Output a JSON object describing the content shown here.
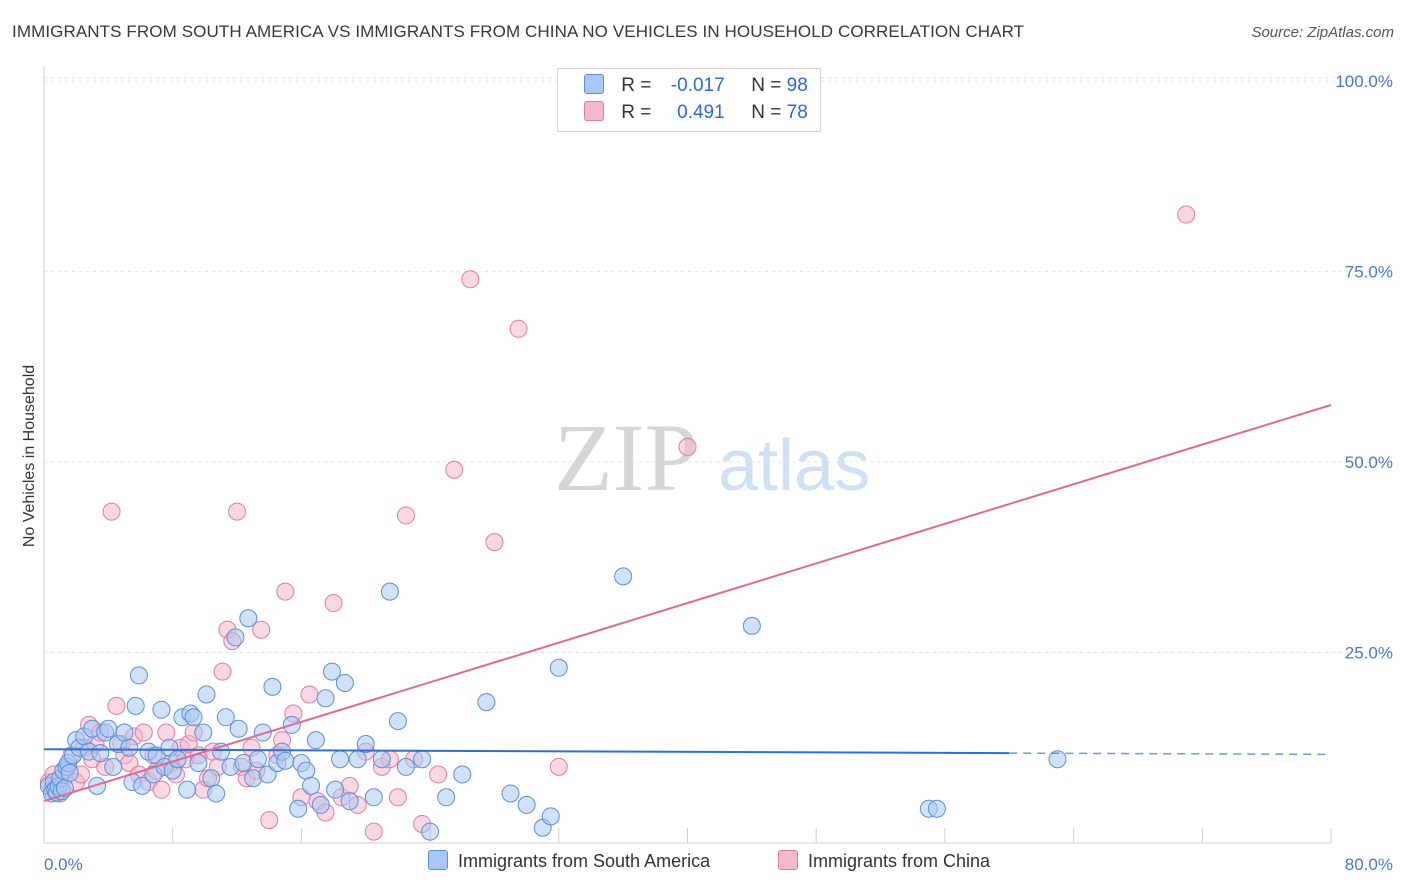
{
  "header": {
    "title": "IMMIGRANTS FROM SOUTH AMERICA VS IMMIGRANTS FROM CHINA NO VEHICLES IN HOUSEHOLD CORRELATION CHART",
    "source": "Source: ZipAtlas.com"
  },
  "watermark": {
    "zip": "ZIP",
    "atlas": "atlas"
  },
  "legend": {
    "rows": [
      {
        "r_label": "R =",
        "r_value": "-0.017",
        "n_label": "N =",
        "n_value": "98",
        "color": "#a9c8f3"
      },
      {
        "r_label": "R =",
        "r_value": "0.491",
        "n_label": "N =",
        "n_value": "78",
        "color": "#f6b8cc"
      }
    ]
  },
  "bottom_legend": {
    "series1": "Immigrants from South America",
    "series2": "Immigrants from China"
  },
  "chart_data": {
    "type": "scatter",
    "title": "IMMIGRANTS FROM SOUTH AMERICA VS IMMIGRANTS FROM CHINA NO VEHICLES IN HOUSEHOLD CORRELATION CHART",
    "xlabel": "",
    "ylabel": "No Vehicles in Household",
    "xlim": [
      0,
      80
    ],
    "ylim": [
      0,
      102
    ],
    "x_tick_labels": [
      "0.0%",
      "80.0%"
    ],
    "y_ticks": [
      25,
      50,
      75,
      100
    ],
    "y_tick_labels": [
      "25.0%",
      "50.0%",
      "75.0%",
      "100.0%"
    ],
    "grid": true,
    "colors": {
      "south_america_fill": "#a9c8f3",
      "south_america_stroke": "#5b8fd6",
      "south_america_line": "#2f6fd1",
      "china_fill": "#f6b8cc",
      "china_stroke": "#e27ba0",
      "china_line": "#e06a95"
    },
    "series": [
      {
        "name": "Immigrants from South America",
        "r": -0.017,
        "n": 98,
        "trend": {
          "x": [
            0,
            60
          ],
          "y": [
            12.3,
            11.8
          ],
          "dashed_to": 80
        },
        "points": [
          [
            0.3,
            7.5
          ],
          [
            0.5,
            6.5
          ],
          [
            0.6,
            8.0
          ],
          [
            0.7,
            7.0
          ],
          [
            0.8,
            6.6
          ],
          [
            0.9,
            7.4
          ],
          [
            1.0,
            8.5
          ],
          [
            1.1,
            6.8
          ],
          [
            1.2,
            9.5
          ],
          [
            1.3,
            7.2
          ],
          [
            1.4,
            10.0
          ],
          [
            1.5,
            10.5
          ],
          [
            1.6,
            9.2
          ],
          [
            1.8,
            11.5
          ],
          [
            2.0,
            13.5
          ],
          [
            2.2,
            12.5
          ],
          [
            2.5,
            14.0
          ],
          [
            2.8,
            12.0
          ],
          [
            3.0,
            15.0
          ],
          [
            3.3,
            7.5
          ],
          [
            3.5,
            11.8
          ],
          [
            3.8,
            14.5
          ],
          [
            4.0,
            15.0
          ],
          [
            4.3,
            10.0
          ],
          [
            4.6,
            13.0
          ],
          [
            5.0,
            14.5
          ],
          [
            5.3,
            12.5
          ],
          [
            5.5,
            8.0
          ],
          [
            5.7,
            18.0
          ],
          [
            5.9,
            22.0
          ],
          [
            6.1,
            7.5
          ],
          [
            6.5,
            12.0
          ],
          [
            6.8,
            9.0
          ],
          [
            7.0,
            11.5
          ],
          [
            7.3,
            17.5
          ],
          [
            7.5,
            10.0
          ],
          [
            7.8,
            12.5
          ],
          [
            8.0,
            9.5
          ],
          [
            8.3,
            11.0
          ],
          [
            8.6,
            16.5
          ],
          [
            8.9,
            7.0
          ],
          [
            9.1,
            17.0
          ],
          [
            9.3,
            16.5
          ],
          [
            9.6,
            10.5
          ],
          [
            9.9,
            14.5
          ],
          [
            10.1,
            19.5
          ],
          [
            10.4,
            8.5
          ],
          [
            10.7,
            6.5
          ],
          [
            11.0,
            12.0
          ],
          [
            11.3,
            16.5
          ],
          [
            11.6,
            10.0
          ],
          [
            11.9,
            27.0
          ],
          [
            12.1,
            15.0
          ],
          [
            12.4,
            10.5
          ],
          [
            12.7,
            29.5
          ],
          [
            13.0,
            8.5
          ],
          [
            13.3,
            11.0
          ],
          [
            13.6,
            14.5
          ],
          [
            13.9,
            9.0
          ],
          [
            14.2,
            20.5
          ],
          [
            14.5,
            10.5
          ],
          [
            14.8,
            12.0
          ],
          [
            15.0,
            10.8
          ],
          [
            15.4,
            15.5
          ],
          [
            15.8,
            4.5
          ],
          [
            16.0,
            10.5
          ],
          [
            16.3,
            9.5
          ],
          [
            16.6,
            7.5
          ],
          [
            16.9,
            13.5
          ],
          [
            17.2,
            5.0
          ],
          [
            17.5,
            19.0
          ],
          [
            17.9,
            22.5
          ],
          [
            18.1,
            7.0
          ],
          [
            18.4,
            11.0
          ],
          [
            18.7,
            21.0
          ],
          [
            19.0,
            5.5
          ],
          [
            19.5,
            11.0
          ],
          [
            20.0,
            13.0
          ],
          [
            20.5,
            6.0
          ],
          [
            21.0,
            11.0
          ],
          [
            21.5,
            33.0
          ],
          [
            22.0,
            16.0
          ],
          [
            22.5,
            10.0
          ],
          [
            23.5,
            11.0
          ],
          [
            24.0,
            1.5
          ],
          [
            25.0,
            6.0
          ],
          [
            26.0,
            9.0
          ],
          [
            27.5,
            18.5
          ],
          [
            29.0,
            6.5
          ],
          [
            30.0,
            5.0
          ],
          [
            31.0,
            2.0
          ],
          [
            31.5,
            3.5
          ],
          [
            32.0,
            23.0
          ],
          [
            36.0,
            35.0
          ],
          [
            44.0,
            28.5
          ],
          [
            55.0,
            4.5
          ],
          [
            55.5,
            4.5
          ],
          [
            63.0,
            11.0
          ]
        ]
      },
      {
        "name": "Immigrants from China",
        "r": 0.491,
        "n": 78,
        "trend": {
          "x": [
            0,
            80
          ],
          "y": [
            5.5,
            57.5
          ]
        },
        "points": [
          [
            0.3,
            8.0
          ],
          [
            0.5,
            7.0
          ],
          [
            0.6,
            9.0
          ],
          [
            0.8,
            7.5
          ],
          [
            1.0,
            6.5
          ],
          [
            1.2,
            8.5
          ],
          [
            1.5,
            10.0
          ],
          [
            1.7,
            11.5
          ],
          [
            2.0,
            8.0
          ],
          [
            2.3,
            9.0
          ],
          [
            2.5,
            12.5
          ],
          [
            2.8,
            15.5
          ],
          [
            3.0,
            11.0
          ],
          [
            3.2,
            13.0
          ],
          [
            3.5,
            14.5
          ],
          [
            3.8,
            10.0
          ],
          [
            4.2,
            43.5
          ],
          [
            4.5,
            18.0
          ],
          [
            4.8,
            13.0
          ],
          [
            5.0,
            11.5
          ],
          [
            5.3,
            10.5
          ],
          [
            5.6,
            14.0
          ],
          [
            5.9,
            9.0
          ],
          [
            6.2,
            14.5
          ],
          [
            6.5,
            8.0
          ],
          [
            6.8,
            11.5
          ],
          [
            7.0,
            9.5
          ],
          [
            7.3,
            7.0
          ],
          [
            7.6,
            14.5
          ],
          [
            7.9,
            10.5
          ],
          [
            8.2,
            9.0
          ],
          [
            8.5,
            12.5
          ],
          [
            8.8,
            11.0
          ],
          [
            9.0,
            13.0
          ],
          [
            9.3,
            14.5
          ],
          [
            9.6,
            11.5
          ],
          [
            9.9,
            7.0
          ],
          [
            10.2,
            8.5
          ],
          [
            10.5,
            12.0
          ],
          [
            10.8,
            10.0
          ],
          [
            11.1,
            22.5
          ],
          [
            11.4,
            28.0
          ],
          [
            11.7,
            26.5
          ],
          [
            12.0,
            43.5
          ],
          [
            12.3,
            10.0
          ],
          [
            12.6,
            8.5
          ],
          [
            12.9,
            12.5
          ],
          [
            13.2,
            9.5
          ],
          [
            13.5,
            28.0
          ],
          [
            14.0,
            3.0
          ],
          [
            14.5,
            11.5
          ],
          [
            14.8,
            13.5
          ],
          [
            15.0,
            33.0
          ],
          [
            15.5,
            17.0
          ],
          [
            16.0,
            6.0
          ],
          [
            16.5,
            19.5
          ],
          [
            17.0,
            5.5
          ],
          [
            17.5,
            4.0
          ],
          [
            18.0,
            31.5
          ],
          [
            18.5,
            6.0
          ],
          [
            19.0,
            7.5
          ],
          [
            19.5,
            5.0
          ],
          [
            20.0,
            12.0
          ],
          [
            20.5,
            1.5
          ],
          [
            21.0,
            10.0
          ],
          [
            21.5,
            11.0
          ],
          [
            22.0,
            6.0
          ],
          [
            22.5,
            43.0
          ],
          [
            23.0,
            11.0
          ],
          [
            23.5,
            2.5
          ],
          [
            24.5,
            9.0
          ],
          [
            25.5,
            49.0
          ],
          [
            26.5,
            74.0
          ],
          [
            28.0,
            39.5
          ],
          [
            29.5,
            67.5
          ],
          [
            32.0,
            10.0
          ],
          [
            40.0,
            52.0
          ],
          [
            71.0,
            82.5
          ]
        ]
      }
    ]
  }
}
